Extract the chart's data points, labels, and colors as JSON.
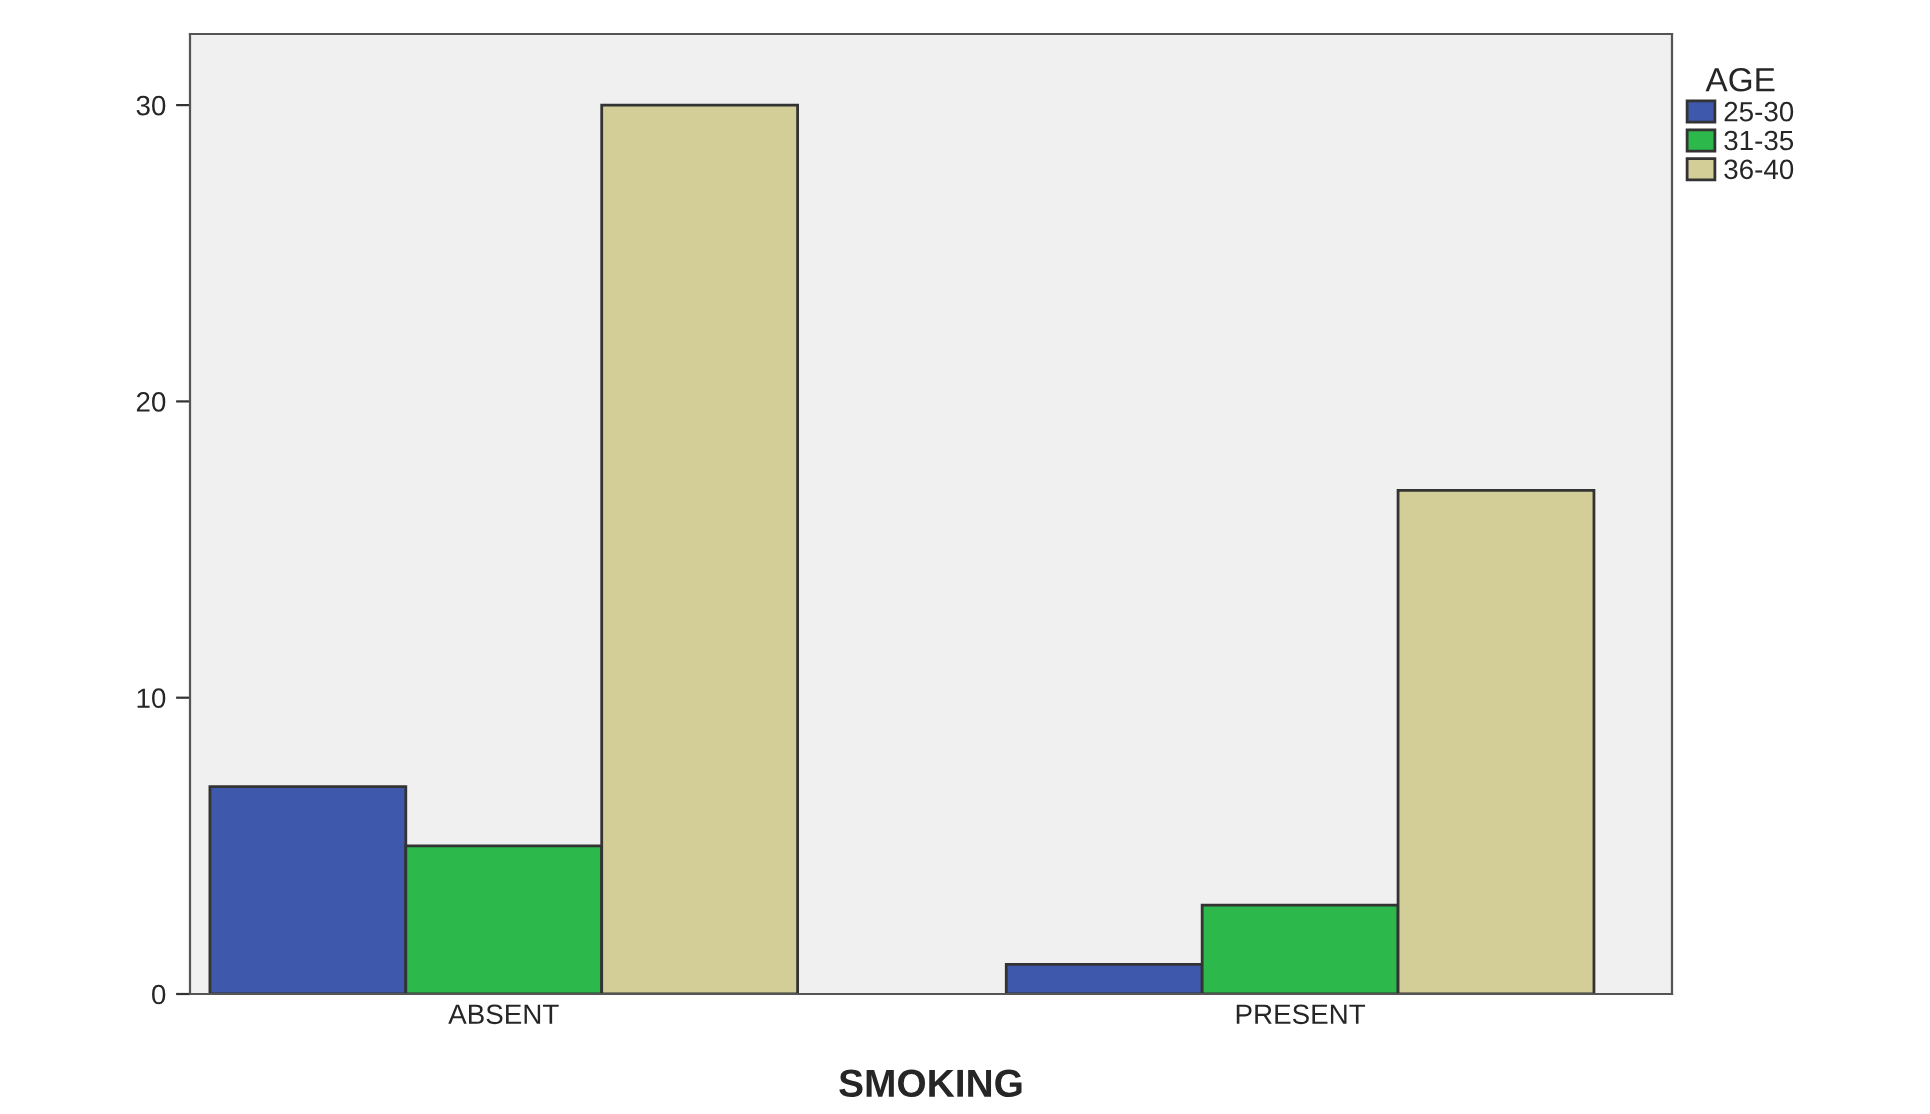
{
  "chart_data": {
    "type": "bar",
    "xlabel": "SMOKING",
    "legend_title": "AGE",
    "categories": [
      "ABSENT",
      "PRESENT"
    ],
    "series": [
      {
        "name": "25-30",
        "color": "#3e58ac",
        "values": [
          7,
          1
        ]
      },
      {
        "name": "31-35",
        "color": "#2db84b",
        "values": [
          5,
          3
        ]
      },
      {
        "name": "36-40",
        "color": "#d3ce97",
        "values": [
          30,
          17
        ]
      }
    ],
    "ylim": [
      0,
      32.4
    ],
    "yticks": [
      0,
      10,
      20,
      30
    ],
    "grid": false,
    "legend": "top right"
  }
}
